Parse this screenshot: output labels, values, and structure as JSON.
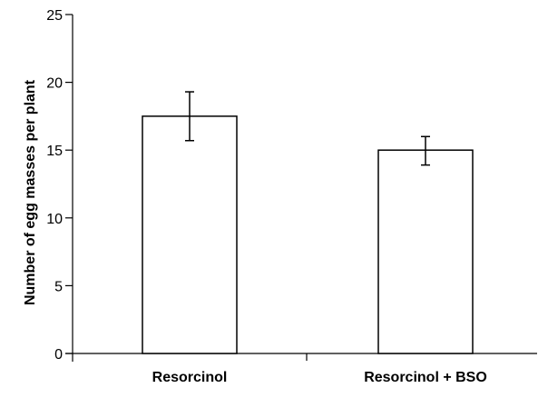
{
  "chart_data": {
    "type": "bar",
    "title": "",
    "xlabel": "",
    "ylabel": "Number of egg masses per plant",
    "categories": [
      "Resorcinol",
      "Resorcinol + BSO"
    ],
    "values": [
      17.5,
      15.0
    ],
    "error_bars": [
      {
        "low": 15.7,
        "high": 19.3
      },
      {
        "low": 13.9,
        "high": 16.0
      }
    ],
    "ylim": [
      0,
      25
    ],
    "yticks": [
      0,
      5,
      10,
      15,
      20,
      25
    ],
    "grid": false,
    "legend": "none",
    "colors": {
      "bar_fill": "#ffffff",
      "bar_stroke": "#000000",
      "axis": "#000000"
    }
  }
}
